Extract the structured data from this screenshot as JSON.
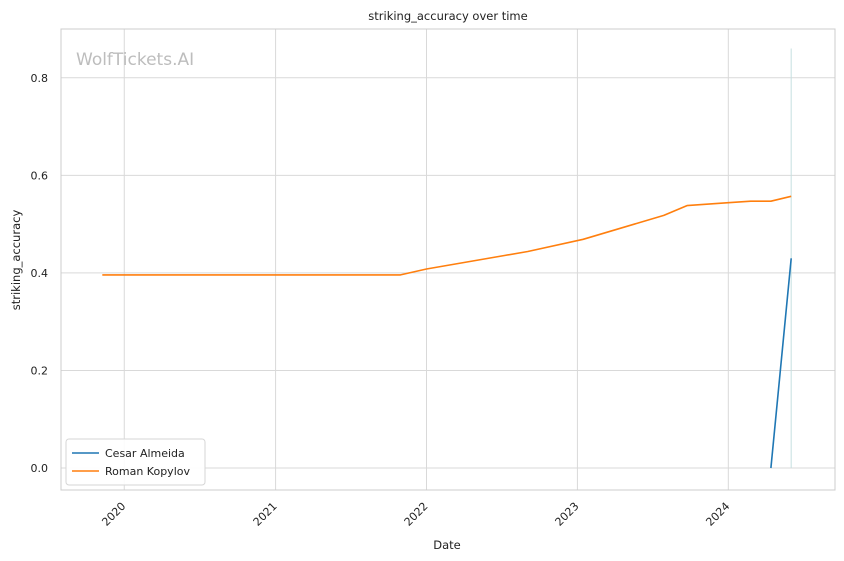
{
  "chart_data": {
    "type": "line",
    "title": "striking_accuracy over time",
    "xlabel": "Date",
    "ylabel": "striking_accuracy",
    "watermark": "WolfTickets.AI",
    "x_ticks": [
      "2020",
      "2021",
      "2022",
      "2023",
      "2024"
    ],
    "y_ticks": [
      "0.0",
      "0.2",
      "0.4",
      "0.6",
      "0.8"
    ],
    "xlim": [
      "2019-08-01",
      "2024-09-15"
    ],
    "ylim": [
      -0.045,
      0.9
    ],
    "grid": true,
    "legend_position": "lower-left",
    "vertical_marker": {
      "x": "2024-06-01",
      "y_range": [
        0.0,
        0.86
      ],
      "color": "#c6dfe0"
    },
    "series": [
      {
        "name": "Cesar Almeida",
        "color": "#1f77b4",
        "points": [
          [
            "2024-04-13",
            0.0
          ],
          [
            "2024-06-01",
            0.43
          ]
        ]
      },
      {
        "name": "Roman Kopylov",
        "color": "#ff7f0e",
        "points": [
          [
            "2019-11-09",
            0.396
          ],
          [
            "2021-10-30",
            0.396
          ],
          [
            "2022-01-01",
            0.408
          ],
          [
            "2022-09-03",
            0.444
          ],
          [
            "2023-01-15",
            0.469
          ],
          [
            "2023-07-29",
            0.518
          ],
          [
            "2023-09-23",
            0.538
          ],
          [
            "2024-01-01",
            0.544
          ],
          [
            "2024-02-24",
            0.547
          ],
          [
            "2024-04-13",
            0.547
          ],
          [
            "2024-06-01",
            0.557
          ]
        ]
      }
    ]
  }
}
